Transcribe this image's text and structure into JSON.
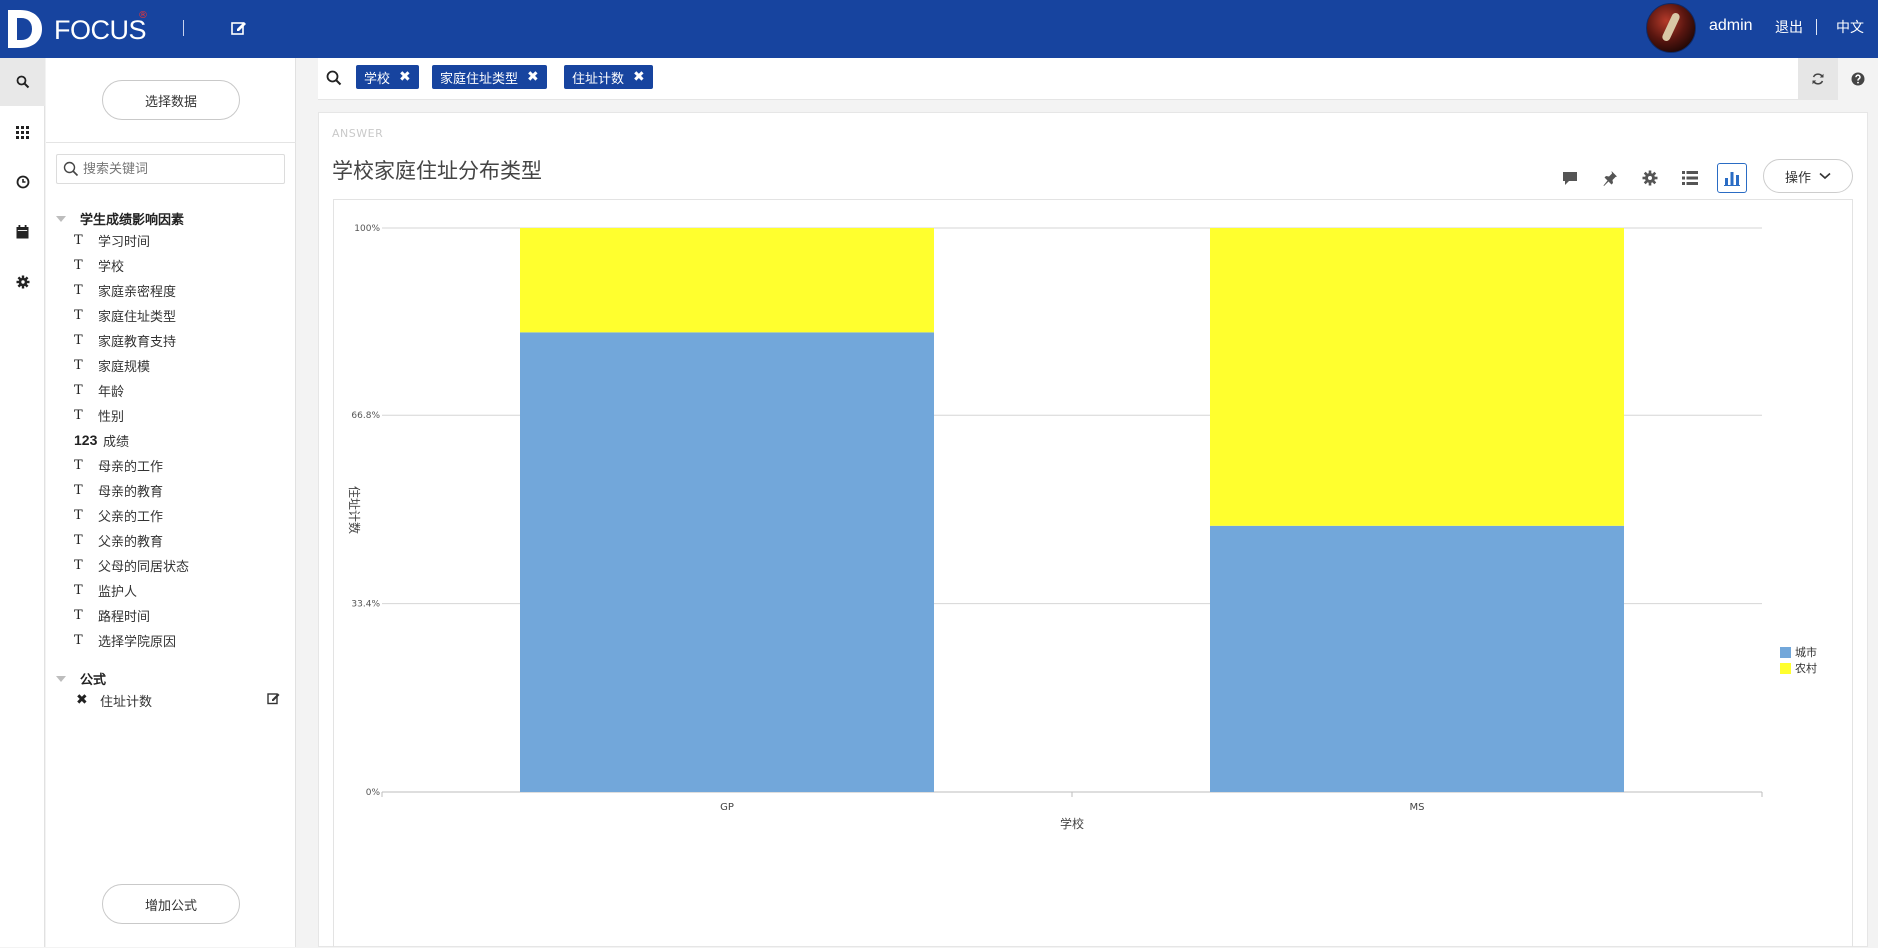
{
  "header": {
    "brand": "FOCUS",
    "brand_mark": "®",
    "username": "admin",
    "logout": "退出",
    "language": "中文"
  },
  "rail": {
    "items": [
      "search-icon",
      "grid-icon",
      "history-icon",
      "calendar-icon",
      "settings-icon"
    ],
    "active": "search-icon"
  },
  "sidebar": {
    "select_data_label": "选择数据",
    "search_placeholder": "搜索关键词",
    "group_name": "学生成绩影响因素",
    "fields": [
      {
        "type": "T",
        "label": "学习时间"
      },
      {
        "type": "T",
        "label": "学校"
      },
      {
        "type": "T",
        "label": "家庭亲密程度"
      },
      {
        "type": "T",
        "label": "家庭住址类型"
      },
      {
        "type": "T",
        "label": "家庭教育支持"
      },
      {
        "type": "T",
        "label": "家庭规模"
      },
      {
        "type": "T",
        "label": "年龄"
      },
      {
        "type": "T",
        "label": "性别"
      },
      {
        "type": "123",
        "label": "成绩"
      },
      {
        "type": "T",
        "label": "母亲的工作"
      },
      {
        "type": "T",
        "label": "母亲的教育"
      },
      {
        "type": "T",
        "label": "父亲的工作"
      },
      {
        "type": "T",
        "label": "父亲的教育"
      },
      {
        "type": "T",
        "label": "父母的同居状态"
      },
      {
        "type": "T",
        "label": "监护人"
      },
      {
        "type": "T",
        "label": "路程时间"
      },
      {
        "type": "T",
        "label": "选择学院原因"
      }
    ],
    "formula_group": "公式",
    "formulas": [
      {
        "label": "住址计数"
      }
    ],
    "add_formula_label": "增加公式"
  },
  "filterbar": {
    "chips": [
      "学校",
      "家庭住址类型",
      "住址计数"
    ]
  },
  "answer": {
    "tag": "ANSWER",
    "title": "学校家庭住址分布类型",
    "operate_label": "操作"
  },
  "chart_data": {
    "type": "bar",
    "stacked": "percent",
    "categories": [
      "GP",
      "MS"
    ],
    "series": [
      {
        "name": "城市",
        "color": "#72a7da",
        "values": [
          81.5,
          47.2
        ]
      },
      {
        "name": "农村",
        "color": "#ffff2e",
        "values": [
          18.5,
          52.8
        ]
      }
    ],
    "yticks": [
      "0%",
      "33.4%",
      "66.8%",
      "100%"
    ],
    "ytick_values": [
      0,
      33.4,
      66.8,
      100
    ],
    "ylim": [
      0,
      100
    ],
    "xlabel": "学校",
    "ylabel": "住址计数",
    "grid": true,
    "legend": "right"
  }
}
